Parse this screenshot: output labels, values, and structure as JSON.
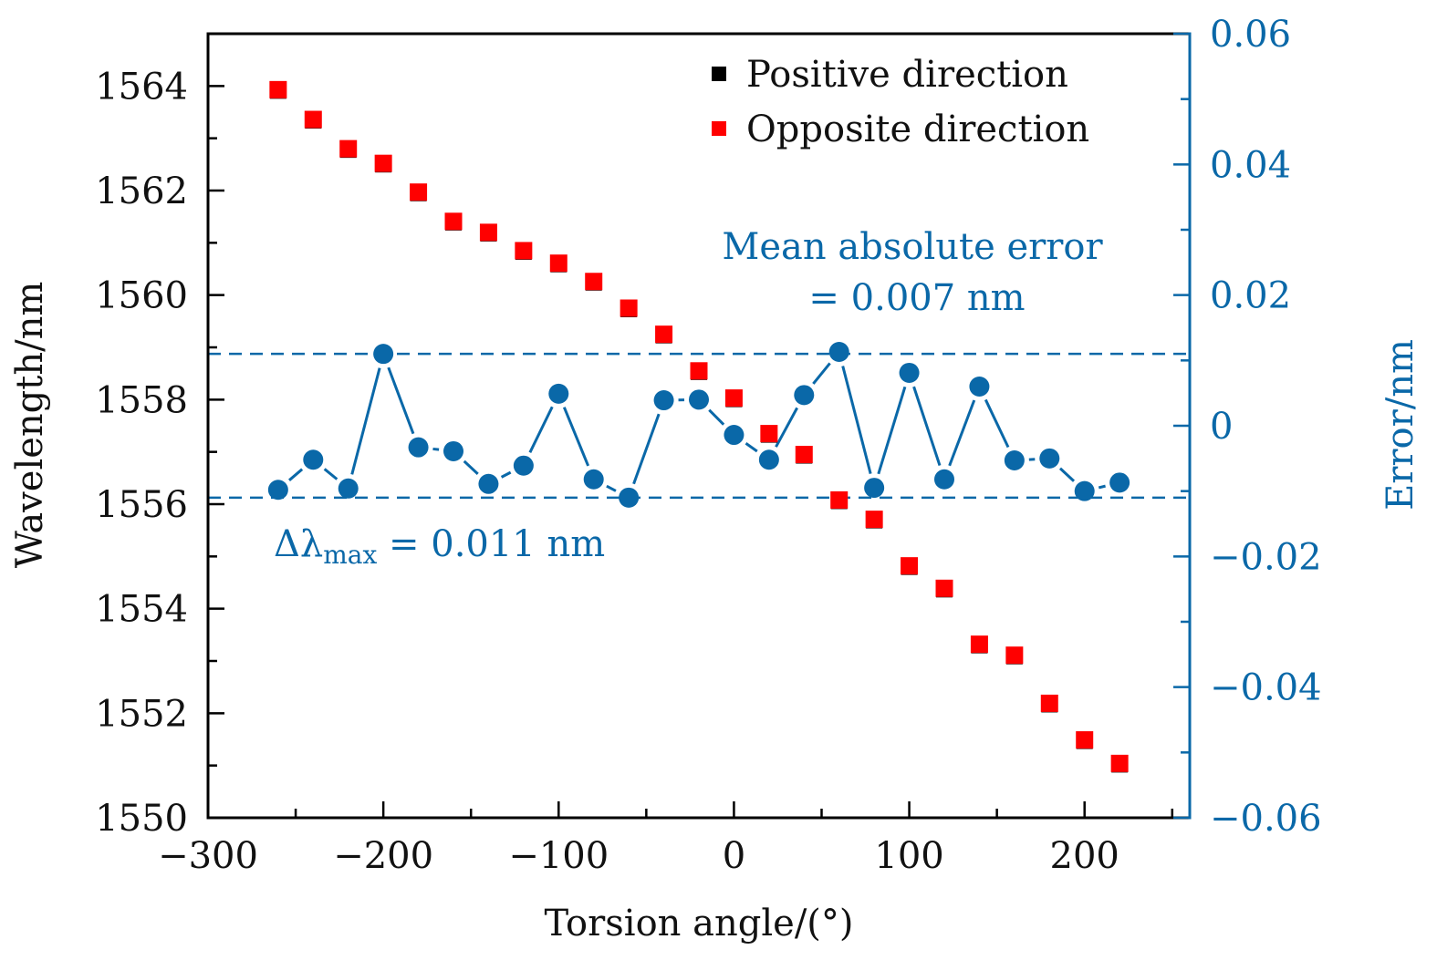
{
  "chart_data": {
    "type": "scatter",
    "title": "",
    "xlabel": "Torsion angle/(°)",
    "ylabel": "Wavelength/nm",
    "y2label": "Error/nm",
    "xlim": [
      -300,
      260
    ],
    "ylim": [
      1550,
      1565
    ],
    "y2lim": [
      -0.06,
      0.06
    ],
    "x_ticks": [
      -300,
      -200,
      -100,
      0,
      100,
      200
    ],
    "x_tick_labels": [
      "−300",
      "−200",
      "−100",
      "0",
      "100",
      "200"
    ],
    "y_ticks": [
      1550,
      1552,
      1554,
      1556,
      1558,
      1560,
      1562,
      1564
    ],
    "y_tick_labels": [
      "1550",
      "1552",
      "1554",
      "1556",
      "1558",
      "1560",
      "1562",
      "1564"
    ],
    "y2_ticks": [
      -0.06,
      -0.04,
      -0.02,
      0,
      0.02,
      0.04,
      0.06
    ],
    "y2_tick_labels": [
      "−0.06",
      "−0.04",
      "−0.02",
      "0",
      "0.02",
      "0.04",
      "0.06"
    ],
    "grid": false,
    "legend": {
      "placement": "top-right",
      "entries": [
        {
          "label": "Positive direction",
          "color": "#000000",
          "marker": "square"
        },
        {
          "label": "Opposite direction",
          "color": "#ff0000",
          "marker": "square"
        }
      ]
    },
    "x": [
      -260,
      -240,
      -220,
      -200,
      -180,
      -160,
      -140,
      -120,
      -100,
      -80,
      -60,
      -40,
      -20,
      0,
      20,
      40,
      60,
      80,
      100,
      120,
      140,
      160,
      180,
      200,
      220
    ],
    "series": [
      {
        "name": "Positive direction",
        "axis": "left",
        "type": "scatter",
        "color": "#000000",
        "values": [
          1563.93,
          1563.36,
          1562.8,
          1562.52,
          1561.97,
          1561.41,
          1561.2,
          1560.85,
          1560.61,
          1560.26,
          1559.75,
          1559.25,
          1558.55,
          1558.03,
          1557.35,
          1556.95,
          1556.08,
          1555.71,
          1554.82,
          1554.39,
          1553.32,
          1553.11,
          1552.19,
          1551.49,
          1551.04
        ]
      },
      {
        "name": "Opposite direction",
        "axis": "left",
        "type": "scatter",
        "color": "#ff0000",
        "values": [
          1563.93,
          1563.36,
          1562.8,
          1562.52,
          1561.97,
          1561.41,
          1561.2,
          1560.85,
          1560.61,
          1560.26,
          1559.75,
          1559.25,
          1558.55,
          1558.03,
          1557.35,
          1556.95,
          1556.08,
          1555.71,
          1554.82,
          1554.39,
          1553.32,
          1553.11,
          1552.19,
          1551.49,
          1551.04
        ]
      },
      {
        "name": "Error",
        "axis": "right",
        "type": "line",
        "color": "#0a68a8",
        "values": [
          -0.0098,
          -0.0052,
          -0.0096,
          0.011,
          -0.0033,
          -0.0039,
          -0.0089,
          -0.0061,
          0.0049,
          -0.0082,
          -0.011,
          0.0039,
          0.004,
          -0.0014,
          -0.0052,
          0.0047,
          0.0113,
          -0.0095,
          0.0081,
          -0.0082,
          0.006,
          -0.0053,
          -0.005,
          -0.01,
          -0.0087
        ]
      }
    ],
    "reference_lines": [
      {
        "axis": "right",
        "value": 0.011,
        "style": "dashed",
        "color": "#0a68a8"
      },
      {
        "axis": "right",
        "value": -0.011,
        "style": "dashed",
        "color": "#0a68a8"
      }
    ],
    "annotations": [
      {
        "name": "mean-absolute-error",
        "lines": [
          "Mean absolute error",
          "= 0.007 nm"
        ],
        "color": "#0a68a8"
      },
      {
        "name": "delta-lambda-max",
        "prefix": "Δλ",
        "subscript": "max",
        "suffix": " = 0.011 nm",
        "color": "#0a68a8"
      }
    ]
  },
  "colors": {
    "axis_left": "#000000",
    "axis_right": "#0a68a8",
    "positive": "#000000",
    "opposite": "#ff0000",
    "error": "#0a68a8"
  }
}
